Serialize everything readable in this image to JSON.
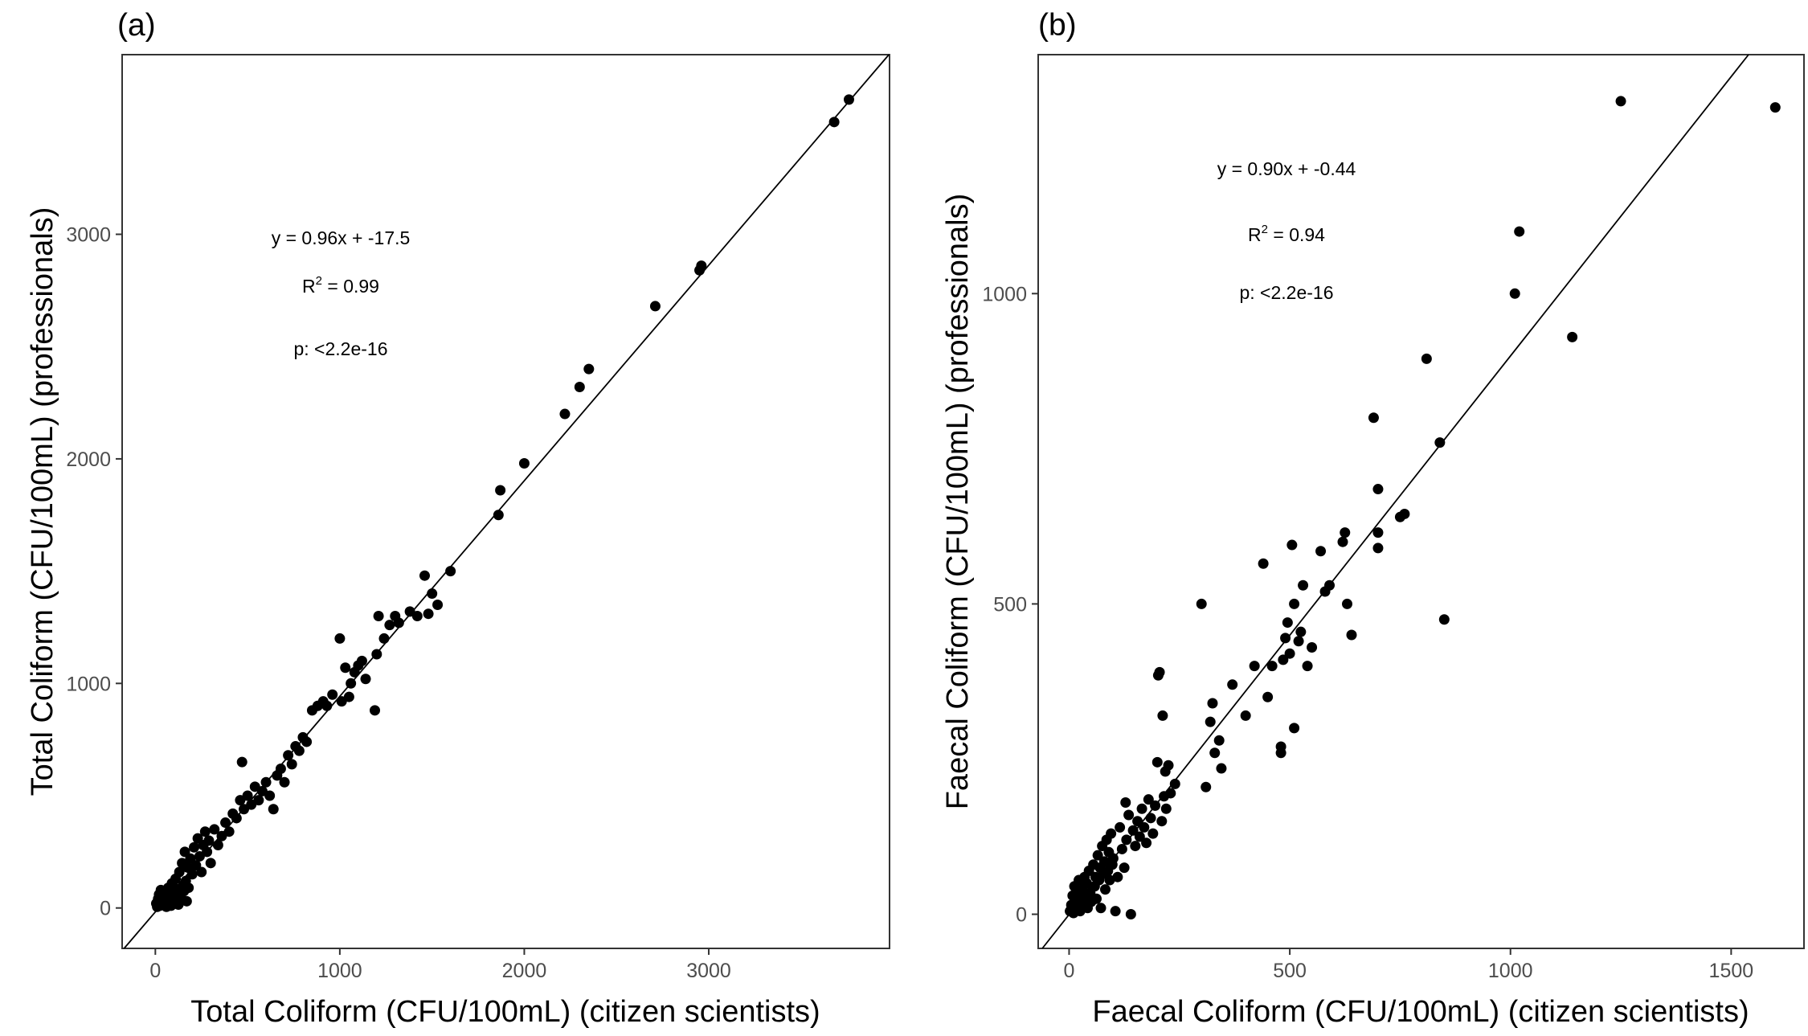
{
  "chart_data": [
    {
      "type": "scatter",
      "panel_label": "(a)",
      "xlabel": "Total Coliform (CFU/100mL) (citizen scientists)",
      "ylabel": "Total Coliform (CFU/100mL) (professionals)",
      "xlim": [
        -180,
        3980
      ],
      "ylim": [
        -180,
        3800
      ],
      "xticks": [
        0,
        1000,
        2000,
        3000
      ],
      "yticks": [
        0,
        1000,
        2000,
        3000
      ],
      "grid": false,
      "reference_line": {
        "slope": 0.96,
        "intercept": -17.5
      },
      "annotations": {
        "equation": "y = 0.96x + -17.5",
        "r2_base": "R",
        "r2_exp": "2",
        "r2_value": " = 0.99",
        "p": "p: <2.2e-16"
      },
      "points": [
        [
          5,
          20
        ],
        [
          10,
          5
        ],
        [
          15,
          40
        ],
        [
          20,
          60
        ],
        [
          25,
          10
        ],
        [
          30,
          80
        ],
        [
          35,
          30
        ],
        [
          40,
          15
        ],
        [
          45,
          50
        ],
        [
          50,
          25
        ],
        [
          55,
          70
        ],
        [
          60,
          5
        ],
        [
          65,
          40
        ],
        [
          70,
          90
        ],
        [
          75,
          20
        ],
        [
          80,
          55
        ],
        [
          85,
          10
        ],
        [
          90,
          110
        ],
        [
          95,
          35
        ],
        [
          100,
          65
        ],
        [
          105,
          25
        ],
        [
          110,
          130
        ],
        [
          115,
          45
        ],
        [
          120,
          85
        ],
        [
          125,
          15
        ],
        [
          130,
          160
        ],
        [
          135,
          60
        ],
        [
          140,
          40
        ],
        [
          145,
          200
        ],
        [
          150,
          100
        ],
        [
          155,
          75
        ],
        [
          160,
          250
        ],
        [
          165,
          120
        ],
        [
          170,
          30
        ],
        [
          175,
          180
        ],
        [
          180,
          90
        ],
        [
          190,
          220
        ],
        [
          200,
          150
        ],
        [
          210,
          270
        ],
        [
          220,
          190
        ],
        [
          230,
          310
        ],
        [
          240,
          230
        ],
        [
          250,
          160
        ],
        [
          260,
          280
        ],
        [
          270,
          340
        ],
        [
          280,
          250
        ],
        [
          290,
          300
        ],
        [
          300,
          200
        ],
        [
          320,
          350
        ],
        [
          340,
          280
        ],
        [
          360,
          320
        ],
        [
          380,
          380
        ],
        [
          400,
          340
        ],
        [
          420,
          420
        ],
        [
          440,
          400
        ],
        [
          460,
          480
        ],
        [
          470,
          650
        ],
        [
          480,
          440
        ],
        [
          500,
          500
        ],
        [
          520,
          460
        ],
        [
          540,
          540
        ],
        [
          560,
          480
        ],
        [
          580,
          520
        ],
        [
          600,
          560
        ],
        [
          620,
          500
        ],
        [
          640,
          440
        ],
        [
          660,
          590
        ],
        [
          680,
          620
        ],
        [
          700,
          560
        ],
        [
          720,
          680
        ],
        [
          740,
          640
        ],
        [
          760,
          720
        ],
        [
          780,
          700
        ],
        [
          800,
          760
        ],
        [
          820,
          740
        ],
        [
          850,
          880
        ],
        [
          880,
          900
        ],
        [
          910,
          920
        ],
        [
          930,
          900
        ],
        [
          960,
          950
        ],
        [
          1000,
          1200
        ],
        [
          1010,
          920
        ],
        [
          1030,
          1070
        ],
        [
          1050,
          940
        ],
        [
          1060,
          1000
        ],
        [
          1080,
          1050
        ],
        [
          1100,
          1080
        ],
        [
          1120,
          1100
        ],
        [
          1140,
          1020
        ],
        [
          1190,
          880
        ],
        [
          1200,
          1130
        ],
        [
          1210,
          1300
        ],
        [
          1240,
          1200
        ],
        [
          1270,
          1260
        ],
        [
          1300,
          1300
        ],
        [
          1320,
          1270
        ],
        [
          1380,
          1320
        ],
        [
          1420,
          1300
        ],
        [
          1460,
          1480
        ],
        [
          1480,
          1310
        ],
        [
          1500,
          1400
        ],
        [
          1530,
          1350
        ],
        [
          1600,
          1500
        ],
        [
          1860,
          1750
        ],
        [
          1870,
          1860
        ],
        [
          2000,
          1980
        ],
        [
          2220,
          2200
        ],
        [
          2300,
          2320
        ],
        [
          2350,
          2400
        ],
        [
          2710,
          2680
        ],
        [
          2950,
          2840
        ],
        [
          2960,
          2860
        ],
        [
          3680,
          3500
        ],
        [
          3760,
          3600
        ]
      ]
    },
    {
      "type": "scatter",
      "panel_label": "(b)",
      "xlabel": "Faecal Coliform (CFU/100mL) (citizen scientists)",
      "ylabel": "Faecal Coliform (CFU/100mL) (professionals)",
      "xlim": [
        -70,
        1665
      ],
      "ylim": [
        -55,
        1385
      ],
      "xticks": [
        0,
        500,
        1000,
        1500
      ],
      "yticks": [
        0,
        500,
        1000
      ],
      "grid": false,
      "reference_line": {
        "slope": 0.9,
        "intercept": -0.44
      },
      "annotations": {
        "equation": "y = 0.90x + -0.44",
        "r2_base": "R",
        "r2_exp": "2",
        "r2_value": " = 0.94",
        "p": "p: <2.2e-16"
      },
      "points": [
        [
          2,
          5
        ],
        [
          5,
          15
        ],
        [
          8,
          30
        ],
        [
          10,
          2
        ],
        [
          12,
          45
        ],
        [
          15,
          20
        ],
        [
          18,
          10
        ],
        [
          20,
          35
        ],
        [
          22,
          55
        ],
        [
          25,
          5
        ],
        [
          28,
          25
        ],
        [
          30,
          40
        ],
        [
          33,
          15
        ],
        [
          35,
          60
        ],
        [
          38,
          30
        ],
        [
          40,
          50
        ],
        [
          42,
          10
        ],
        [
          45,
          70
        ],
        [
          48,
          35
        ],
        [
          50,
          20
        ],
        [
          55,
          80
        ],
        [
          58,
          45
        ],
        [
          60,
          60
        ],
        [
          62,
          25
        ],
        [
          65,
          95
        ],
        [
          68,
          55
        ],
        [
          70,
          75
        ],
        [
          72,
          10
        ],
        [
          75,
          110
        ],
        [
          78,
          65
        ],
        [
          80,
          85
        ],
        [
          82,
          40
        ],
        [
          85,
          120
        ],
        [
          88,
          70
        ],
        [
          90,
          100
        ],
        [
          92,
          55
        ],
        [
          95,
          130
        ],
        [
          98,
          80
        ],
        [
          100,
          90
        ],
        [
          105,
          5
        ],
        [
          110,
          60
        ],
        [
          115,
          140
        ],
        [
          120,
          105
        ],
        [
          125,
          75
        ],
        [
          128,
          180
        ],
        [
          130,
          120
        ],
        [
          135,
          160
        ],
        [
          140,
          0
        ],
        [
          145,
          135
        ],
        [
          150,
          110
        ],
        [
          155,
          150
        ],
        [
          160,
          125
        ],
        [
          165,
          170
        ],
        [
          170,
          140
        ],
        [
          175,
          115
        ],
        [
          180,
          185
        ],
        [
          185,
          155
        ],
        [
          190,
          130
        ],
        [
          195,
          175
        ],
        [
          200,
          245
        ],
        [
          202,
          385
        ],
        [
          205,
          390
        ],
        [
          210,
          150
        ],
        [
          212,
          320
        ],
        [
          215,
          190
        ],
        [
          218,
          230
        ],
        [
          220,
          170
        ],
        [
          225,
          240
        ],
        [
          230,
          195
        ],
        [
          240,
          210
        ],
        [
          300,
          500
        ],
        [
          310,
          205
        ],
        [
          320,
          310
        ],
        [
          325,
          340
        ],
        [
          330,
          260
        ],
        [
          340,
          280
        ],
        [
          345,
          235
        ],
        [
          370,
          370
        ],
        [
          400,
          320
        ],
        [
          420,
          400
        ],
        [
          440,
          565
        ],
        [
          450,
          350
        ],
        [
          460,
          400
        ],
        [
          480,
          260
        ],
        [
          480,
          270
        ],
        [
          485,
          410
        ],
        [
          490,
          445
        ],
        [
          495,
          470
        ],
        [
          500,
          420
        ],
        [
          505,
          595
        ],
        [
          510,
          300
        ],
        [
          510,
          500
        ],
        [
          520,
          440
        ],
        [
          525,
          455
        ],
        [
          530,
          530
        ],
        [
          540,
          400
        ],
        [
          550,
          430
        ],
        [
          570,
          585
        ],
        [
          580,
          520
        ],
        [
          590,
          530
        ],
        [
          620,
          600
        ],
        [
          625,
          615
        ],
        [
          630,
          500
        ],
        [
          640,
          450
        ],
        [
          690,
          800
        ],
        [
          700,
          590
        ],
        [
          700,
          615
        ],
        [
          700,
          685
        ],
        [
          750,
          640
        ],
        [
          760,
          645
        ],
        [
          810,
          895
        ],
        [
          840,
          760
        ],
        [
          850,
          475
        ],
        [
          1010,
          1000
        ],
        [
          1020,
          1100
        ],
        [
          1140,
          930
        ],
        [
          1250,
          1310
        ],
        [
          1600,
          1300
        ]
      ]
    }
  ]
}
